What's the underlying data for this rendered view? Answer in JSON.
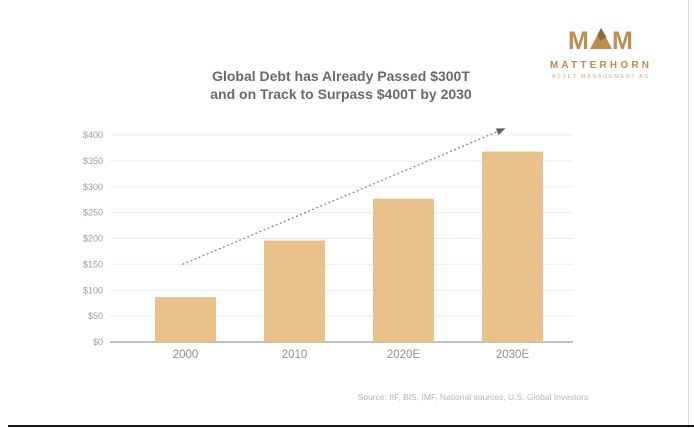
{
  "logo": {
    "brand": "MATTERHORN",
    "subtitle": "ASSET MANAGEMENT AG",
    "monogram": "M-mountain-M",
    "color": "#bd8e4f"
  },
  "title": {
    "line1": "Global Debt has Already Passed $300T",
    "line2": "and on Track to Surpass $400T by 2030"
  },
  "chart_data": {
    "type": "bar",
    "categories": [
      "2000",
      "2010",
      "2020E",
      "2030E"
    ],
    "values": [
      87,
      196,
      277,
      368
    ],
    "units": "USD trillions",
    "title": "Global Debt has Already Passed $300T and on Track to Surpass $400T by 2030",
    "xlabel": "",
    "ylabel": "",
    "ylim": [
      0,
      400
    ],
    "ytick_step": 50,
    "ytick_labels": [
      "$0",
      "$50",
      "$100",
      "$150",
      "$200",
      "$250",
      "$300",
      "$350",
      "$400"
    ],
    "grid": true,
    "legend": false,
    "bar_color": "#e9c18a",
    "trend_arrow": {
      "style": "dotted",
      "from": {
        "category_index": 0,
        "value": 150
      },
      "to": {
        "category_index": 3,
        "value": 413
      }
    }
  },
  "footer": {
    "source": "Source: IIF, BIS, IMF, National sources, U.S. Global Investors"
  }
}
